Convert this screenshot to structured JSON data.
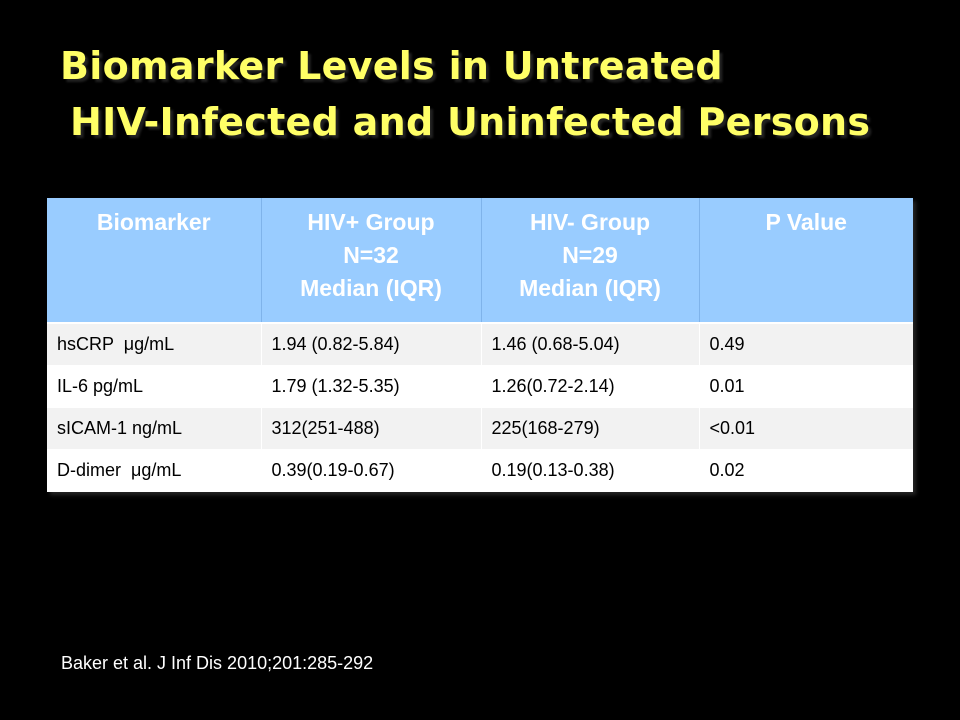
{
  "slide": {
    "title_line1": "Biomarker Levels in Untreated",
    "title_line2": "HIV-Infected and Uninfected Persons",
    "citation": "Baker et al. J Inf Dis 2010;201:285-292",
    "colors": {
      "background": "#000000",
      "title": "#ffff66",
      "header_fill": "#99ccff",
      "row_alt": "#f2f2f2",
      "row": "#ffffff"
    }
  },
  "table": {
    "headers": [
      {
        "lines": [
          "Biomarker"
        ]
      },
      {
        "lines": [
          "HIV+ Group",
          "N=32",
          "Median (IQR)"
        ]
      },
      {
        "lines": [
          "HIV- Group",
          "N=29",
          "Median (IQR)"
        ]
      },
      {
        "lines": [
          "P Value"
        ]
      }
    ],
    "rows": [
      [
        "hsCRP  μg/mL",
        "1.94 (0.82-5.84)",
        "1.46 (0.68-5.04)",
        "0.49"
      ],
      [
        "IL-6 pg/mL",
        "1.79 (1.32-5.35)",
        "1.26(0.72-2.14)",
        "0.01"
      ],
      [
        "sICAM-1 ng/mL",
        "312(251-488)",
        "225(168-279)",
        "<0.01"
      ],
      [
        "D-dimer  μg/mL",
        "0.39(0.19-0.67)",
        "0.19(0.13-0.38)",
        "0.02"
      ]
    ]
  }
}
